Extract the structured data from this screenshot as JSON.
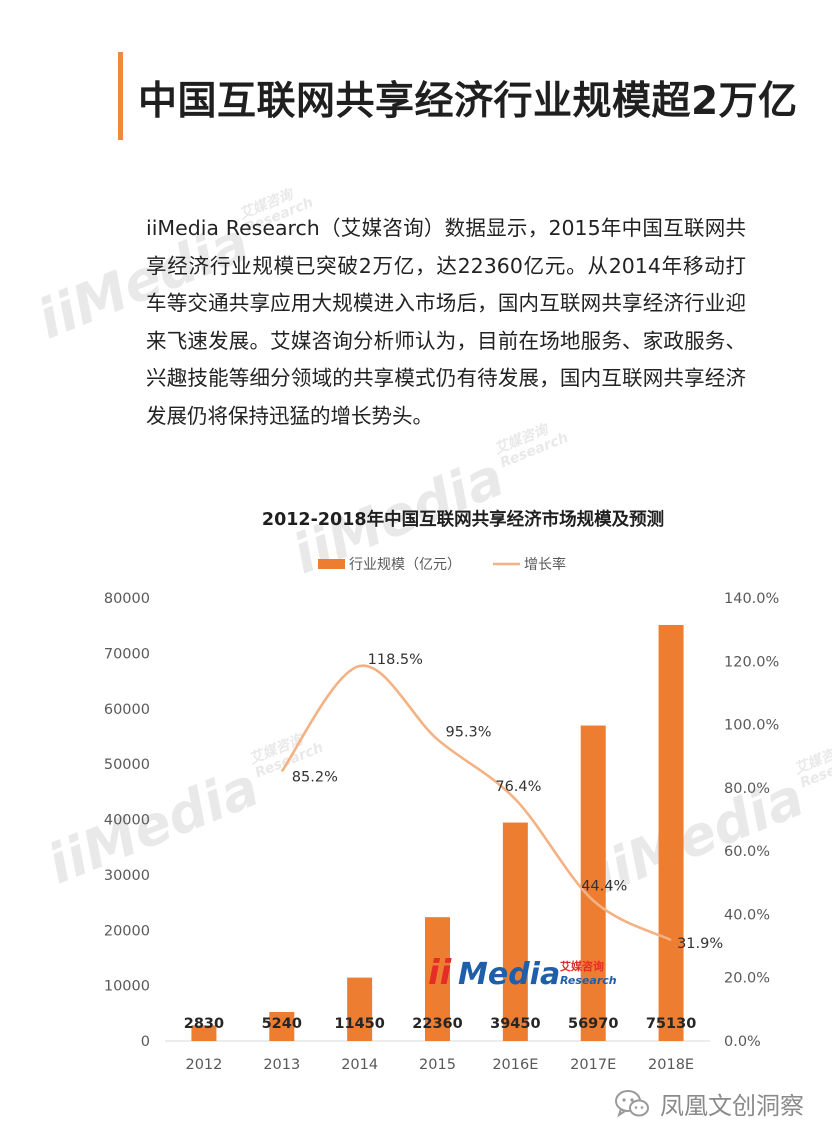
{
  "page": {
    "title": "中国互联网共享经济行业规模超2万亿",
    "intro": "iiMedia Research（艾媒咨询）数据显示，2015年中国互联网共享经济行业规模已突破2万亿，达22360亿元。从2014年移动打车等交通共享应用大规模进入市场后，国内互联网共享经济行业迎来飞速发展。艾媒咨询分析师认为，目前在场地服务、家政服务、兴趣技能等细分领域的共享模式仍有待发展，国内互联网共享经济发展仍将保持迅猛的增长势头。"
  },
  "watermark": {
    "main": "iiMedia",
    "cn": "艾媒咨询",
    "en": "Research"
  },
  "chart_data": {
    "type": "bar",
    "title": "2012-2018年中国互联网共享经济市场规模及预测",
    "categories": [
      "2012",
      "2013",
      "2014",
      "2015",
      "2016E",
      "2017E",
      "2018E"
    ],
    "series": [
      {
        "name": "行业规模（亿元）",
        "type": "bar",
        "axis": "left",
        "color": "#ed7d31",
        "values": [
          2830,
          5240,
          11450,
          22360,
          39450,
          56970,
          75130
        ]
      },
      {
        "name": "增长率",
        "type": "line",
        "axis": "right",
        "color": "#f4b183",
        "values": [
          null,
          85.2,
          118.5,
          95.3,
          76.4,
          44.4,
          31.9
        ],
        "labels": [
          "",
          "85.2%",
          "118.5%",
          "95.3%",
          "76.4%",
          "44.4%",
          "31.9%"
        ]
      }
    ],
    "left_axis": {
      "ylim": [
        0,
        80000
      ],
      "ticks": [
        "0",
        "10000",
        "20000",
        "30000",
        "40000",
        "50000",
        "60000",
        "70000",
        "80000"
      ]
    },
    "right_axis": {
      "ylim": [
        0,
        140
      ],
      "ticks": [
        "0.0%",
        "20.0%",
        "40.0%",
        "60.0%",
        "80.0%",
        "100.0%",
        "120.0%",
        "140.0%"
      ]
    },
    "legend_position": "top-center",
    "grid": false
  },
  "footer": {
    "brand": "凤凰文创洞察",
    "icon": "wechat-icon"
  }
}
